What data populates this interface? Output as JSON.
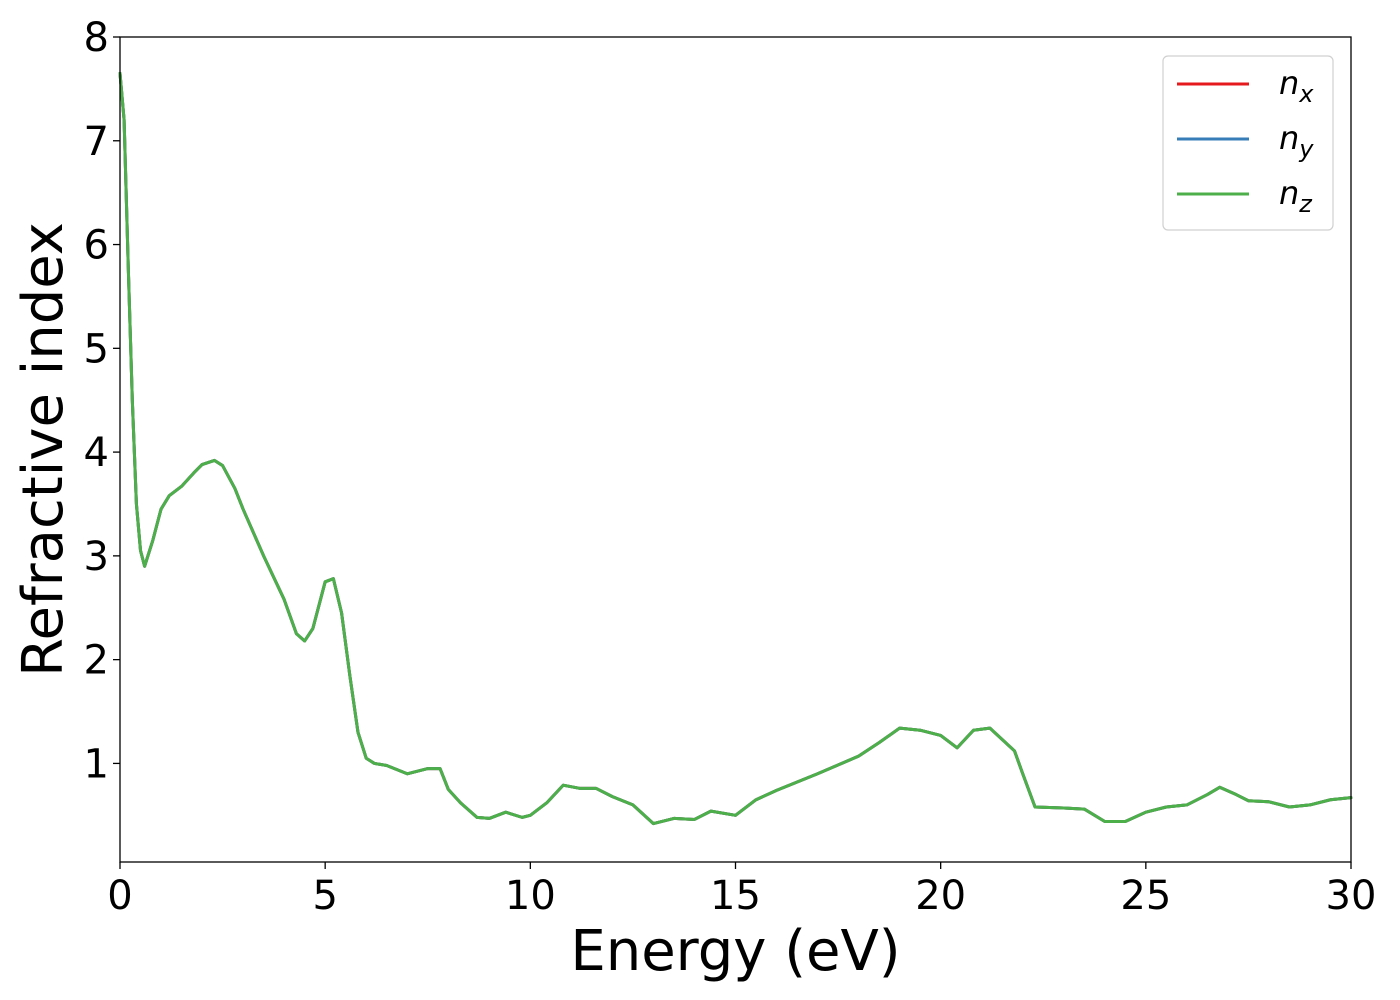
{
  "chart_data": {
    "type": "line",
    "title": "",
    "xlabel": "Energy (eV)",
    "ylabel": "Refractive index",
    "xlim": [
      0,
      30
    ],
    "ylim": [
      0.05,
      8
    ],
    "xticks": [
      0,
      5,
      10,
      15,
      20,
      25,
      30
    ],
    "yticks": [
      1,
      2,
      3,
      4,
      5,
      6,
      7,
      8
    ],
    "grid": false,
    "legend_position": "top-right",
    "series": [
      {
        "name": "n_x",
        "name_base": "n",
        "name_sub": "x",
        "color": "#e41a1c",
        "x": [
          0,
          0.1,
          0.2,
          0.3,
          0.4,
          0.5,
          0.6,
          0.8,
          1.0,
          1.2,
          1.5,
          1.8,
          2.0,
          2.3,
          2.5,
          2.8,
          3.0,
          3.5,
          4.0,
          4.3,
          4.5,
          4.7,
          5.0,
          5.2,
          5.4,
          5.6,
          5.8,
          6.0,
          6.2,
          6.5,
          7.0,
          7.5,
          7.8,
          8.0,
          8.3,
          8.7,
          9.0,
          9.4,
          9.8,
          10.0,
          10.4,
          10.8,
          11.2,
          11.6,
          12.0,
          12.5,
          13.0,
          13.5,
          14.0,
          14.4,
          15.0,
          15.5,
          16.0,
          17.0,
          18.0,
          18.5,
          19.0,
          19.5,
          20.0,
          20.4,
          20.8,
          21.2,
          21.8,
          22.0,
          22.3,
          23.0,
          23.5,
          24.0,
          24.5,
          25.0,
          25.5,
          26.0,
          26.5,
          26.8,
          27.2,
          27.5,
          28.0,
          28.5,
          29.0,
          29.5,
          30.0
        ],
        "values": [
          7.65,
          7.2,
          5.8,
          4.5,
          3.5,
          3.05,
          2.9,
          3.15,
          3.45,
          3.58,
          3.67,
          3.8,
          3.88,
          3.92,
          3.87,
          3.65,
          3.45,
          3.0,
          2.58,
          2.25,
          2.18,
          2.3,
          2.75,
          2.78,
          2.45,
          1.85,
          1.3,
          1.05,
          1.0,
          0.98,
          0.9,
          0.95,
          0.95,
          0.75,
          0.62,
          0.48,
          0.47,
          0.53,
          0.48,
          0.5,
          0.62,
          0.79,
          0.76,
          0.76,
          0.68,
          0.6,
          0.42,
          0.47,
          0.46,
          0.54,
          0.5,
          0.65,
          0.74,
          0.9,
          1.07,
          1.2,
          1.34,
          1.32,
          1.27,
          1.15,
          1.32,
          1.34,
          1.12,
          0.9,
          0.58,
          0.57,
          0.56,
          0.44,
          0.44,
          0.53,
          0.58,
          0.6,
          0.7,
          0.77,
          0.7,
          0.64,
          0.63,
          0.58,
          0.6,
          0.65,
          0.67
        ]
      },
      {
        "name": "n_y",
        "name_base": "n",
        "name_sub": "y",
        "color": "#377eb8",
        "x": [
          0,
          0.1,
          0.2,
          0.3,
          0.4,
          0.5,
          0.6,
          0.8,
          1.0,
          1.2,
          1.5,
          1.8,
          2.0,
          2.3,
          2.5,
          2.8,
          3.0,
          3.5,
          4.0,
          4.3,
          4.5,
          4.7,
          5.0,
          5.2,
          5.4,
          5.6,
          5.8,
          6.0,
          6.2,
          6.5,
          7.0,
          7.5,
          7.8,
          8.0,
          8.3,
          8.7,
          9.0,
          9.4,
          9.8,
          10.0,
          10.4,
          10.8,
          11.2,
          11.6,
          12.0,
          12.5,
          13.0,
          13.5,
          14.0,
          14.4,
          15.0,
          15.5,
          16.0,
          17.0,
          18.0,
          18.5,
          19.0,
          19.5,
          20.0,
          20.4,
          20.8,
          21.2,
          21.8,
          22.0,
          22.3,
          23.0,
          23.5,
          24.0,
          24.5,
          25.0,
          25.5,
          26.0,
          26.5,
          26.8,
          27.2,
          27.5,
          28.0,
          28.5,
          29.0,
          29.5,
          30.0
        ],
        "values": [
          7.65,
          7.2,
          5.8,
          4.5,
          3.5,
          3.05,
          2.9,
          3.15,
          3.45,
          3.58,
          3.67,
          3.8,
          3.88,
          3.92,
          3.87,
          3.65,
          3.45,
          3.0,
          2.58,
          2.25,
          2.18,
          2.3,
          2.75,
          2.78,
          2.45,
          1.85,
          1.3,
          1.05,
          1.0,
          0.98,
          0.9,
          0.95,
          0.95,
          0.75,
          0.62,
          0.48,
          0.47,
          0.53,
          0.48,
          0.5,
          0.62,
          0.79,
          0.76,
          0.76,
          0.68,
          0.6,
          0.42,
          0.47,
          0.46,
          0.54,
          0.5,
          0.65,
          0.74,
          0.9,
          1.07,
          1.2,
          1.34,
          1.32,
          1.27,
          1.15,
          1.32,
          1.34,
          1.12,
          0.9,
          0.58,
          0.57,
          0.56,
          0.44,
          0.44,
          0.53,
          0.58,
          0.6,
          0.7,
          0.77,
          0.7,
          0.64,
          0.63,
          0.58,
          0.6,
          0.65,
          0.67
        ]
      },
      {
        "name": "n_z",
        "name_base": "n",
        "name_sub": "z",
        "color": "#4daf4a",
        "x": [
          0,
          0.1,
          0.2,
          0.3,
          0.4,
          0.5,
          0.6,
          0.8,
          1.0,
          1.2,
          1.5,
          1.8,
          2.0,
          2.3,
          2.5,
          2.8,
          3.0,
          3.5,
          4.0,
          4.3,
          4.5,
          4.7,
          5.0,
          5.2,
          5.4,
          5.6,
          5.8,
          6.0,
          6.2,
          6.5,
          7.0,
          7.5,
          7.8,
          8.0,
          8.3,
          8.7,
          9.0,
          9.4,
          9.8,
          10.0,
          10.4,
          10.8,
          11.2,
          11.6,
          12.0,
          12.5,
          13.0,
          13.5,
          14.0,
          14.4,
          15.0,
          15.5,
          16.0,
          17.0,
          18.0,
          18.5,
          19.0,
          19.5,
          20.0,
          20.4,
          20.8,
          21.2,
          21.8,
          22.0,
          22.3,
          23.0,
          23.5,
          24.0,
          24.5,
          25.0,
          25.5,
          26.0,
          26.5,
          26.8,
          27.2,
          27.5,
          28.0,
          28.5,
          29.0,
          29.5,
          30.0
        ],
        "values": [
          7.65,
          7.2,
          5.8,
          4.5,
          3.5,
          3.05,
          2.9,
          3.15,
          3.45,
          3.58,
          3.67,
          3.8,
          3.88,
          3.92,
          3.87,
          3.65,
          3.45,
          3.0,
          2.58,
          2.25,
          2.18,
          2.3,
          2.75,
          2.78,
          2.45,
          1.85,
          1.3,
          1.05,
          1.0,
          0.98,
          0.9,
          0.95,
          0.95,
          0.75,
          0.62,
          0.48,
          0.47,
          0.53,
          0.48,
          0.5,
          0.62,
          0.79,
          0.76,
          0.76,
          0.68,
          0.6,
          0.42,
          0.47,
          0.46,
          0.54,
          0.5,
          0.65,
          0.74,
          0.9,
          1.07,
          1.2,
          1.34,
          1.32,
          1.27,
          1.15,
          1.32,
          1.34,
          1.12,
          0.9,
          0.58,
          0.57,
          0.56,
          0.44,
          0.44,
          0.53,
          0.58,
          0.6,
          0.7,
          0.77,
          0.7,
          0.64,
          0.63,
          0.58,
          0.6,
          0.65,
          0.67
        ]
      }
    ]
  }
}
